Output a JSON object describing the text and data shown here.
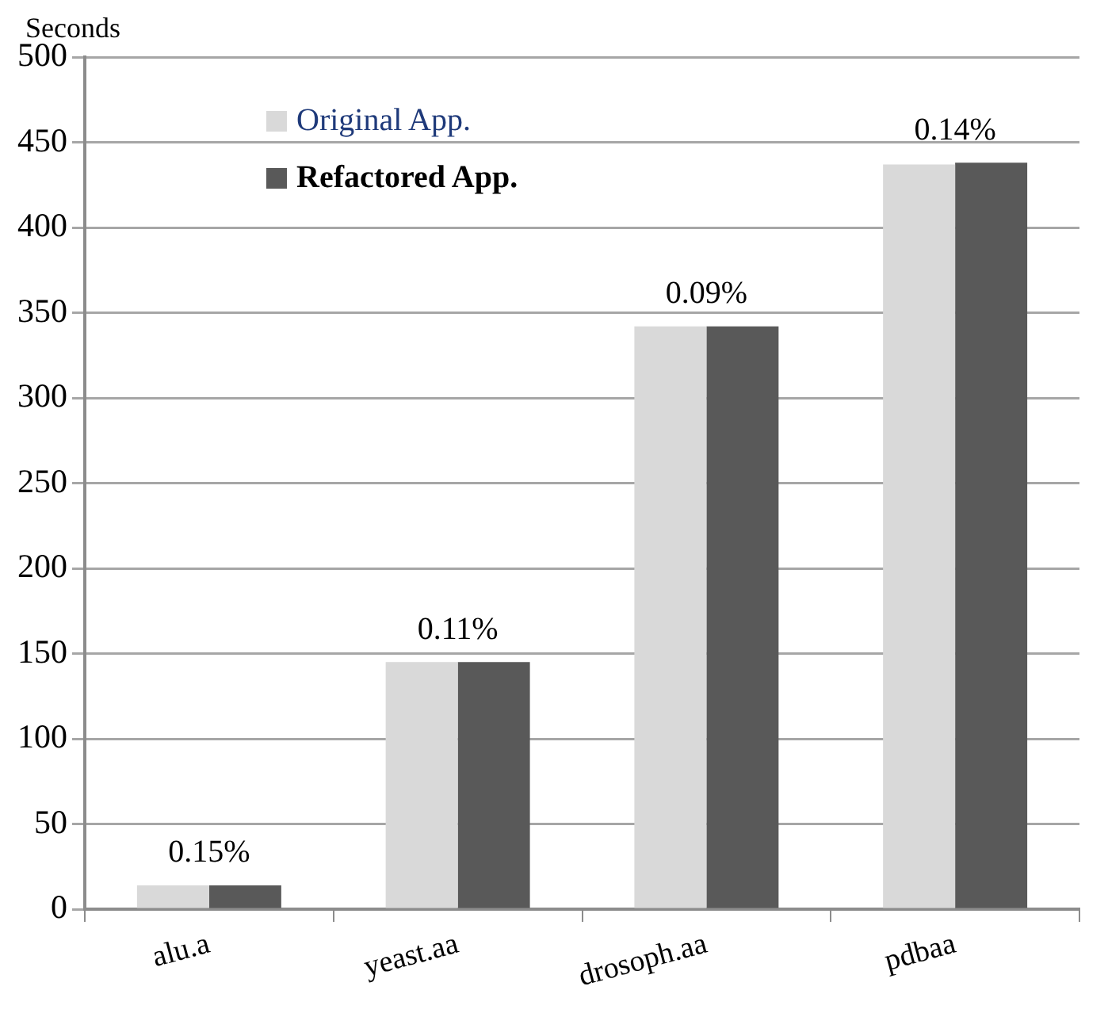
{
  "chart_data": {
    "type": "bar",
    "ylabel": "Seconds",
    "categories": [
      "alu.a",
      "yeast.aa",
      "drosoph.aa",
      "pdbaa"
    ],
    "series": [
      {
        "name": "Original App.",
        "color": "#d9d9d9",
        "values": [
          14,
          145,
          342,
          437
        ]
      },
      {
        "name": "Refactored App.",
        "color": "#595959",
        "values": [
          14,
          145,
          342,
          438
        ]
      }
    ],
    "ylim": [
      0,
      500
    ],
    "yticks": [
      0,
      50,
      100,
      150,
      200,
      250,
      300,
      350,
      400,
      450,
      500
    ],
    "grid": "y",
    "legend": "top left",
    "annotations": [
      {
        "text": "0.15%",
        "x": "alu.a",
        "y": 14
      },
      {
        "text": "0.11%",
        "x": "yeast.aa",
        "y": 145
      },
      {
        "text": "0.09%",
        "x": "drosoph.aa",
        "y": 342
      },
      {
        "text": "0.14%",
        "x": "pdbaa",
        "y": 438
      }
    ]
  }
}
